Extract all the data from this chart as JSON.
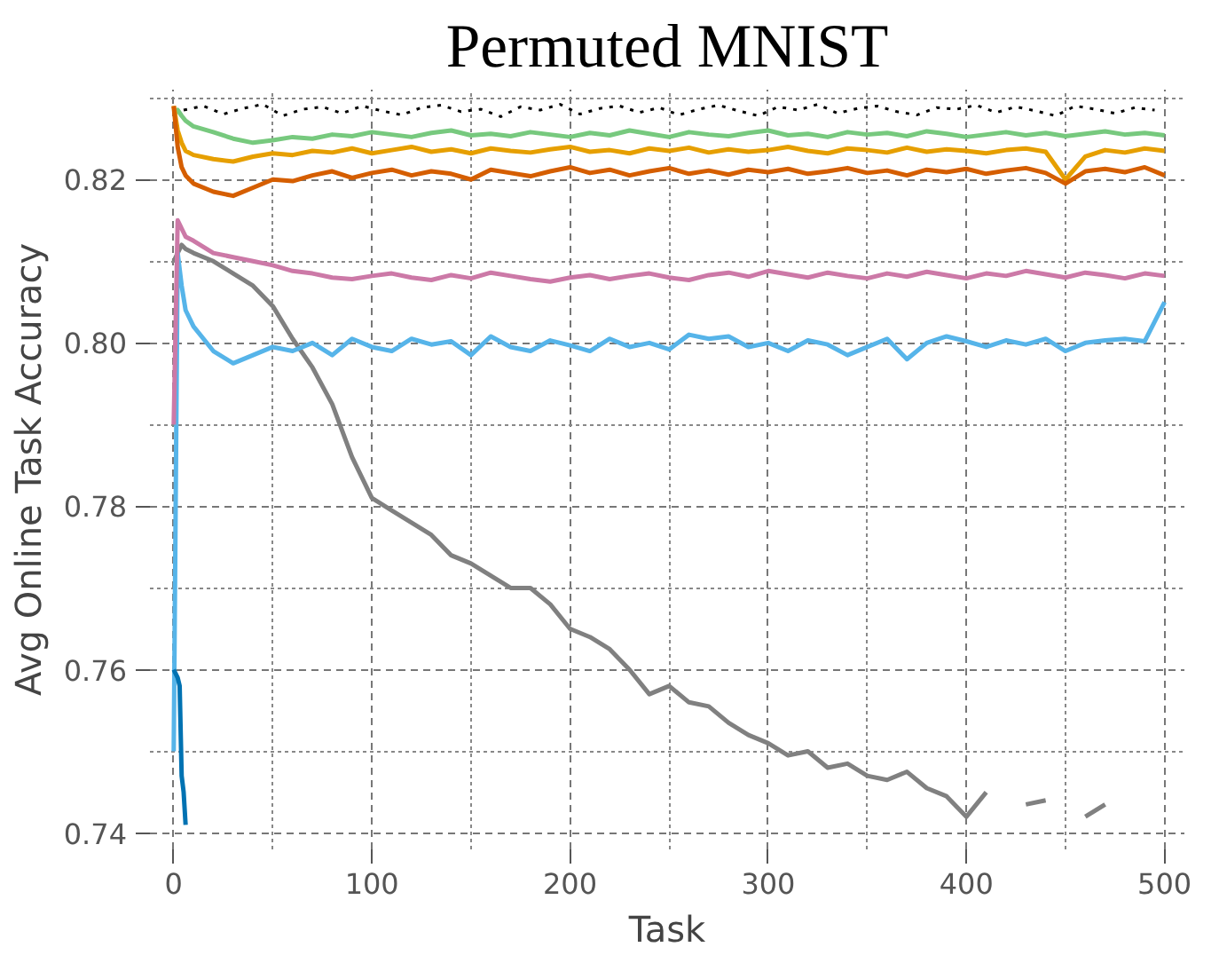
{
  "chart_data": {
    "type": "line",
    "title": "Permuted MNIST",
    "xlabel": "Task",
    "ylabel": "Avg Online Task Accuracy",
    "x": [
      0,
      2,
      4,
      6,
      10,
      20,
      30,
      40,
      50,
      60,
      70,
      80,
      90,
      100,
      110,
      120,
      130,
      140,
      150,
      160,
      170,
      180,
      190,
      200,
      210,
      220,
      230,
      240,
      250,
      260,
      270,
      280,
      290,
      300,
      310,
      320,
      330,
      340,
      350,
      360,
      370,
      380,
      390,
      400,
      410,
      420,
      430,
      440,
      450,
      460,
      470,
      480,
      490,
      500
    ],
    "xlim": [
      -12,
      510
    ],
    "ylim": [
      0.738,
      0.831
    ],
    "xticks": [
      0,
      {
        "value": 50,
        "label": null
      },
      100,
      {
        "value": 150,
        "label": null
      },
      200,
      {
        "value": 250,
        "label": null
      },
      300,
      {
        "value": 350,
        "label": null
      },
      400,
      {
        "value": 450,
        "label": null
      },
      500
    ],
    "yticks": [
      0.74,
      {
        "value": 0.75,
        "label": null
      },
      0.76,
      {
        "value": 0.77,
        "label": null
      },
      0.78,
      {
        "value": 0.79,
        "label": null
      },
      {
        "value": 0.8,
        "label": "0.80"
      },
      {
        "value": 0.81,
        "label": null
      },
      0.82,
      {
        "value": 0.83,
        "label": null
      }
    ],
    "grid": true,
    "series": [
      {
        "color": "#808080",
        "values": [
          0.81,
          0.811,
          0.812,
          0.8115,
          0.811,
          0.81,
          0.8085,
          0.807,
          0.8045,
          0.8005,
          0.797,
          0.7925,
          0.786,
          0.781,
          0.7795,
          0.778,
          0.7765,
          0.774,
          0.773,
          0.7715,
          0.77,
          0.77,
          0.768,
          0.765,
          0.764,
          0.7625,
          0.76,
          0.757,
          0.758,
          0.756,
          0.7555,
          0.7535,
          0.752,
          0.751,
          0.7495,
          0.75,
          0.748,
          0.7485,
          0.747,
          0.7465,
          0.7475,
          0.7455,
          0.7445,
          0.742,
          0.745,
          null,
          0.7435,
          0.744,
          null,
          0.742,
          0.7435,
          null,
          null,
          null
        ]
      },
      {
        "color": "#56b4e9",
        "values": [
          0.75,
          0.811,
          0.807,
          0.804,
          0.802,
          0.799,
          0.7975,
          0.7985,
          0.7995,
          0.799,
          0.8,
          0.7985,
          0.8005,
          0.7995,
          0.799,
          0.8005,
          0.7998,
          0.8002,
          0.7985,
          0.8008,
          0.7995,
          0.799,
          0.8003,
          0.7997,
          0.799,
          0.8005,
          0.7995,
          0.8,
          0.7992,
          0.801,
          0.8005,
          0.8008,
          0.7995,
          0.8,
          0.799,
          0.8003,
          0.7998,
          0.7985,
          0.7995,
          0.8005,
          0.798,
          0.8,
          0.8008,
          0.8002,
          0.7995,
          0.8003,
          0.7998,
          0.8005,
          0.799,
          0.8,
          0.8003,
          0.8005,
          0.8002,
          0.805
        ]
      },
      {
        "color": "#cc79a7",
        "values": [
          0.79,
          0.815,
          0.814,
          0.813,
          0.8125,
          0.811,
          0.8105,
          0.81,
          0.8095,
          0.8088,
          0.8085,
          0.808,
          0.8078,
          0.8082,
          0.8085,
          0.808,
          0.8077,
          0.8083,
          0.8079,
          0.8086,
          0.8082,
          0.8078,
          0.8075,
          0.808,
          0.8083,
          0.8078,
          0.8082,
          0.8085,
          0.808,
          0.8077,
          0.8083,
          0.8086,
          0.8081,
          0.8088,
          0.8084,
          0.808,
          0.8086,
          0.8082,
          0.8079,
          0.8085,
          0.8081,
          0.8087,
          0.8083,
          0.8079,
          0.8085,
          0.8082,
          0.8088,
          0.8084,
          0.808,
          0.8086,
          0.8083,
          0.8079,
          0.8085,
          0.8082
        ]
      },
      {
        "color": "#77c97e",
        "values": [
          0.828,
          0.8285,
          0.8278,
          0.8272,
          0.8265,
          0.8258,
          0.825,
          0.8245,
          0.8248,
          0.8252,
          0.825,
          0.8255,
          0.8253,
          0.8258,
          0.8255,
          0.8252,
          0.8257,
          0.826,
          0.8254,
          0.8256,
          0.8253,
          0.8258,
          0.8255,
          0.8252,
          0.8257,
          0.8254,
          0.826,
          0.8256,
          0.8252,
          0.8258,
          0.8255,
          0.8253,
          0.8257,
          0.826,
          0.8254,
          0.8256,
          0.8252,
          0.8258,
          0.8255,
          0.8257,
          0.8253,
          0.8259,
          0.8256,
          0.8252,
          0.8255,
          0.8258,
          0.8254,
          0.8257,
          0.8253,
          0.8256,
          0.8259,
          0.8255,
          0.8257,
          0.8254
        ]
      },
      {
        "color": "#e69f00",
        "values": [
          0.829,
          0.826,
          0.8245,
          0.8235,
          0.823,
          0.8225,
          0.8222,
          0.8228,
          0.8232,
          0.823,
          0.8235,
          0.8233,
          0.8238,
          0.8232,
          0.8236,
          0.824,
          0.8234,
          0.8237,
          0.8232,
          0.8238,
          0.8235,
          0.8233,
          0.8237,
          0.824,
          0.8234,
          0.8236,
          0.8232,
          0.8238,
          0.8235,
          0.8239,
          0.8233,
          0.8237,
          0.8234,
          0.8236,
          0.824,
          0.8235,
          0.8232,
          0.8238,
          0.8236,
          0.8233,
          0.8239,
          0.8234,
          0.8237,
          0.8235,
          0.8232,
          0.8236,
          0.8238,
          0.8234,
          0.82,
          0.8228,
          0.8236,
          0.8233,
          0.8238,
          0.8235
        ]
      },
      {
        "color": "#d55e00",
        "values": [
          0.829,
          0.824,
          0.8215,
          0.8205,
          0.8195,
          0.8185,
          0.818,
          0.819,
          0.82,
          0.8198,
          0.8205,
          0.821,
          0.8202,
          0.8208,
          0.8212,
          0.8205,
          0.821,
          0.8207,
          0.82,
          0.8212,
          0.8208,
          0.8204,
          0.821,
          0.8215,
          0.8208,
          0.8212,
          0.8205,
          0.821,
          0.8214,
          0.8207,
          0.8211,
          0.8206,
          0.8212,
          0.8209,
          0.8213,
          0.8207,
          0.821,
          0.8214,
          0.8208,
          0.8211,
          0.8205,
          0.8212,
          0.8209,
          0.8213,
          0.8207,
          0.8211,
          0.8214,
          0.8208,
          0.8195,
          0.821,
          0.8213,
          0.8209,
          0.8215,
          0.8205
        ]
      },
      {
        "color": "#000000",
        "line_style": "dotted",
        "x": [
          5,
          15,
          25,
          35,
          45,
          55,
          65,
          75,
          85,
          95,
          105,
          115,
          125,
          135,
          145,
          155,
          165,
          175,
          185,
          195,
          205,
          215,
          225,
          235,
          245,
          255,
          265,
          275,
          285,
          295,
          305,
          315,
          325,
          335,
          345,
          355,
          365,
          375,
          385,
          395,
          405,
          415,
          425,
          435,
          445,
          455,
          465,
          475,
          485,
          495
        ],
        "values": [
          0.8285,
          0.829,
          0.828,
          0.8287,
          0.8292,
          0.8278,
          0.8286,
          0.8289,
          0.8281,
          0.829,
          0.8284,
          0.8279,
          0.8288,
          0.8291,
          0.8283,
          0.8286,
          0.8277,
          0.8289,
          0.8285,
          0.8292,
          0.828,
          0.8287,
          0.829,
          0.8282,
          0.8288,
          0.8279,
          0.8286,
          0.8291,
          0.8284,
          0.8278,
          0.8289,
          0.8285,
          0.8292,
          0.8281,
          0.8287,
          0.829,
          0.8283,
          0.8279,
          0.8288,
          0.8286,
          0.8291,
          0.8282,
          0.8289,
          0.8284,
          0.8278,
          0.829,
          0.8286,
          0.8281,
          0.8288,
          0.8285
        ]
      },
      {
        "color": "#0072b2",
        "x": [
          0,
          2,
          3,
          4,
          5,
          6
        ],
        "values": [
          0.76,
          0.759,
          0.758,
          0.747,
          0.745,
          0.741
        ]
      }
    ]
  }
}
